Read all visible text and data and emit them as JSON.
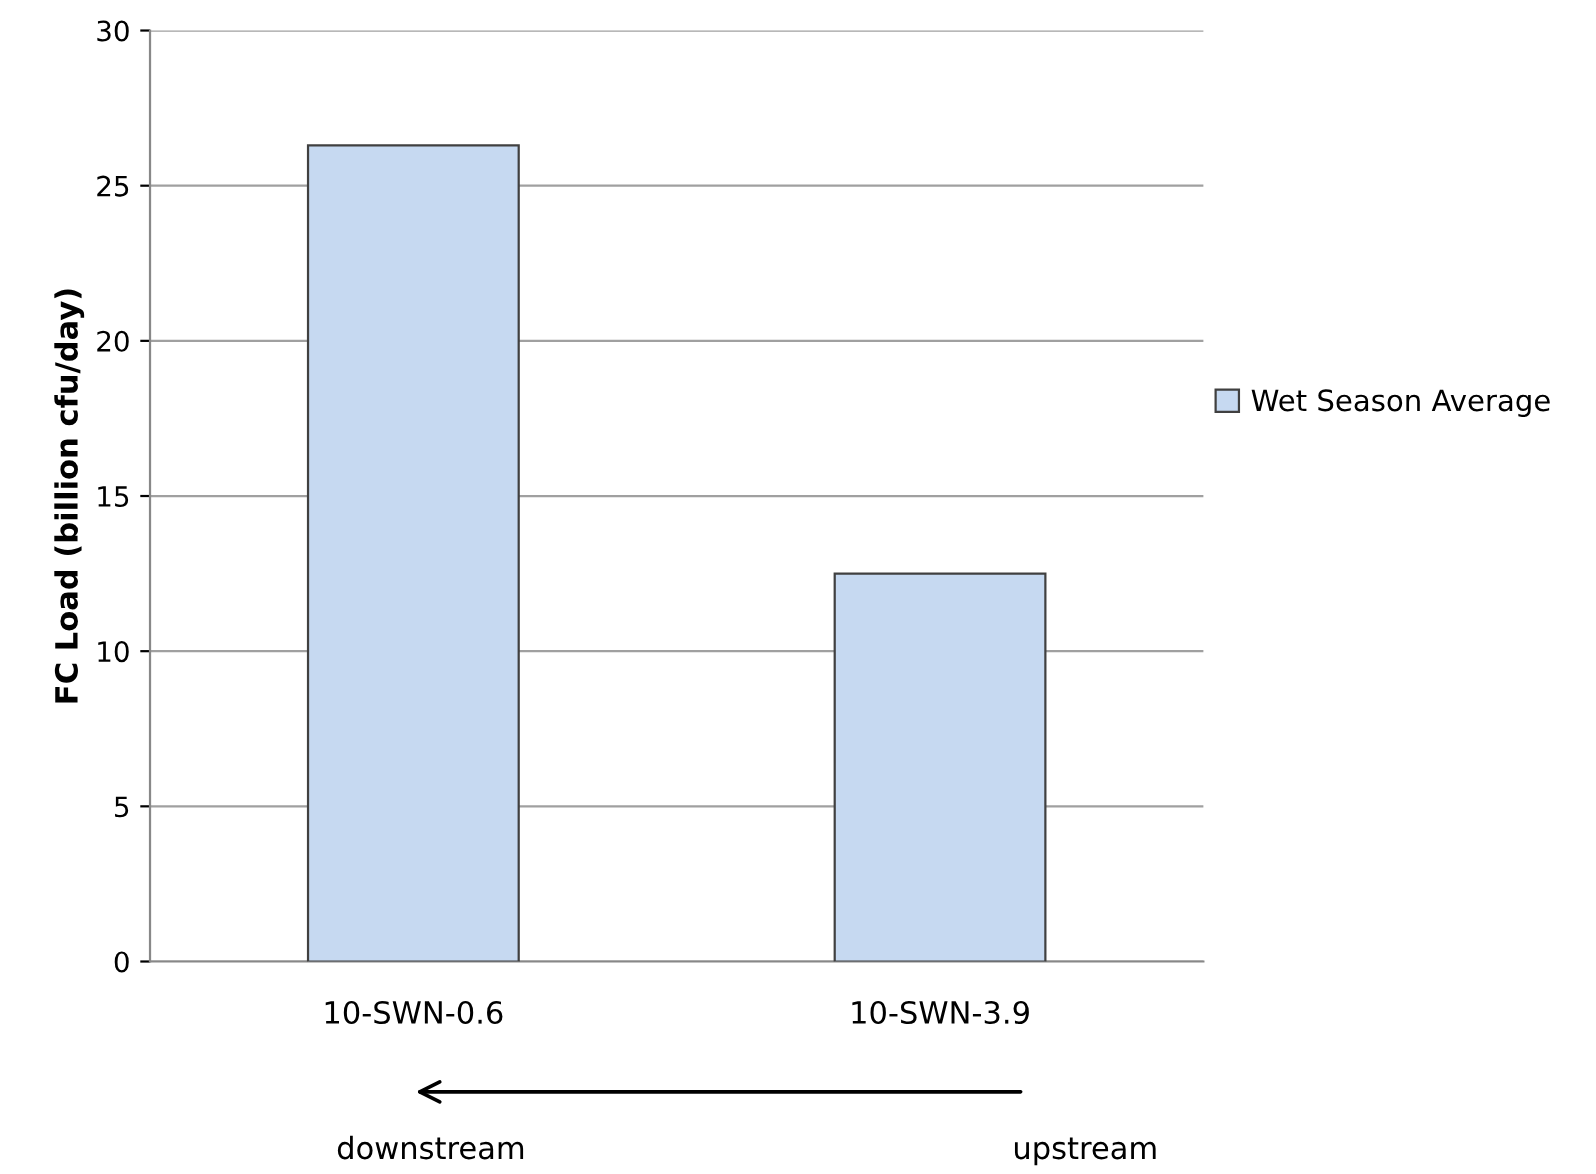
{
  "chart_data": {
    "type": "bar",
    "ylabel": "FC Load (billion cfu/day)",
    "categories": [
      "10-SWN-0.6",
      "10-SWN-3.9"
    ],
    "series": [
      {
        "name": "Wet Season Average",
        "color": "#c6d9f1",
        "values": [
          26.3,
          12.5
        ]
      }
    ],
    "ylim": [
      0,
      30
    ],
    "yticks": [
      0,
      5,
      10,
      15,
      20,
      25,
      30
    ],
    "grid": "y",
    "legend": "right",
    "annotations": [
      "downstream",
      "upstream"
    ]
  }
}
